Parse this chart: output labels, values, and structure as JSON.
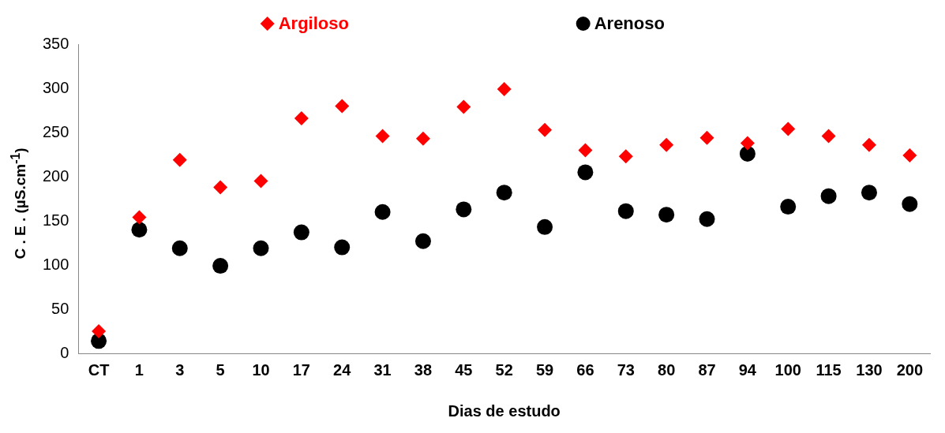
{
  "chart_data": {
    "type": "scatter",
    "xlabel": "Dias de estudo",
    "ylabel": "C . E . (µS.cm$^{-1}$)",
    "categories": [
      "CT",
      "1",
      "3",
      "5",
      "10",
      "17",
      "24",
      "31",
      "38",
      "45",
      "52",
      "59",
      "66",
      "73",
      "80",
      "87",
      "94",
      "100",
      "115",
      "130",
      "200"
    ],
    "series": [
      {
        "name": "Argiloso",
        "color": "#ff0000",
        "marker": "diamond",
        "values": [
          25,
          154,
          219,
          188,
          195,
          266,
          280,
          246,
          243,
          279,
          299,
          253,
          230,
          223,
          236,
          244,
          238,
          254,
          246,
          236,
          224
        ]
      },
      {
        "name": "Arenoso",
        "color": "#000000",
        "marker": "circle",
        "values": [
          14,
          140,
          119,
          99,
          119,
          137,
          120,
          160,
          127,
          163,
          182,
          143,
          205,
          161,
          157,
          152,
          226,
          166,
          178,
          182,
          169
        ]
      }
    ],
    "ylim": [
      0,
      350
    ],
    "yticks": [
      0,
      50,
      100,
      150,
      200,
      250,
      300,
      350
    ],
    "grid": false,
    "legend": "top"
  }
}
